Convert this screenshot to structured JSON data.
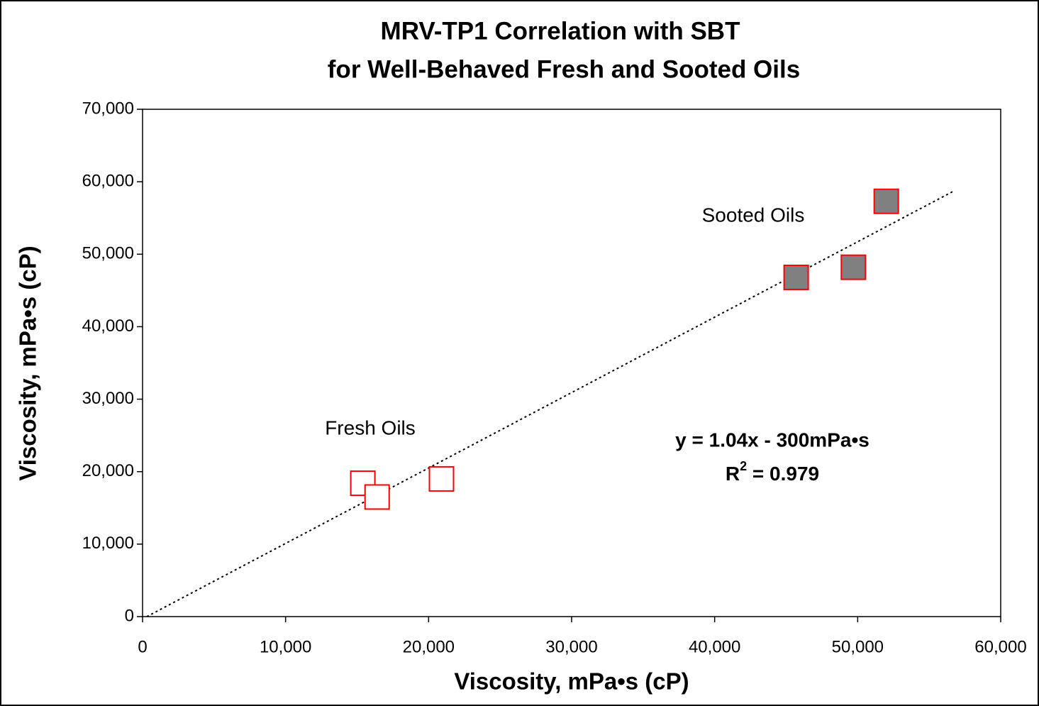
{
  "chart_data": {
    "type": "scatter",
    "title": [
      "MRV-TP1 Correlation with SBT",
      "for Well-Behaved Fresh and Sooted Oils"
    ],
    "x_label": "Viscosity, mPa•s (cP)",
    "y_label": "Viscosity, mPa•s (cP)",
    "xlim": [
      0,
      60000
    ],
    "ylim": [
      0,
      70000
    ],
    "xticks": [
      0,
      {
        "value": 10000,
        "label": "10,000"
      },
      {
        "value": 20000,
        "label": "20,000"
      },
      {
        "value": 30000,
        "label": "30,000"
      },
      {
        "value": 40000,
        "label": "40,000"
      },
      {
        "value": 50000,
        "label": "50,000"
      },
      {
        "value": 60000,
        "label": "60,000"
      }
    ],
    "yticks": [
      0,
      {
        "value": 10000,
        "label": "10,000"
      },
      {
        "value": 20000,
        "label": "20,000"
      },
      {
        "value": 30000,
        "label": "30,000"
      },
      {
        "value": 40000,
        "label": "40,000"
      },
      {
        "value": 50000,
        "label": "50,000"
      },
      {
        "value": 60000,
        "label": "60,000"
      },
      {
        "value": 70000,
        "label": "70,000"
      }
    ],
    "grid": false,
    "series": [
      {
        "name": "Fresh Oils",
        "color": "#ffffff",
        "edge_color": "#ff0000",
        "x": [
          15400,
          16400,
          20900
        ],
        "values": [
          18400,
          16500,
          19000
        ]
      },
      {
        "name": "Sooted Oils",
        "color": "#808080",
        "edge_color": "#ff0000",
        "x": [
          45700,
          49700,
          52000
        ],
        "values": [
          46800,
          48200,
          57300
        ]
      }
    ],
    "trendline": {
      "color": "#000000",
      "x": [
        300,
        56800
      ],
      "values": [
        0,
        58800
      ]
    },
    "annotations": {
      "equation": "y = 1.04x - 300mPa•s",
      "r_squared": [
        "R",
        "2",
        " = 0.979"
      ]
    }
  }
}
